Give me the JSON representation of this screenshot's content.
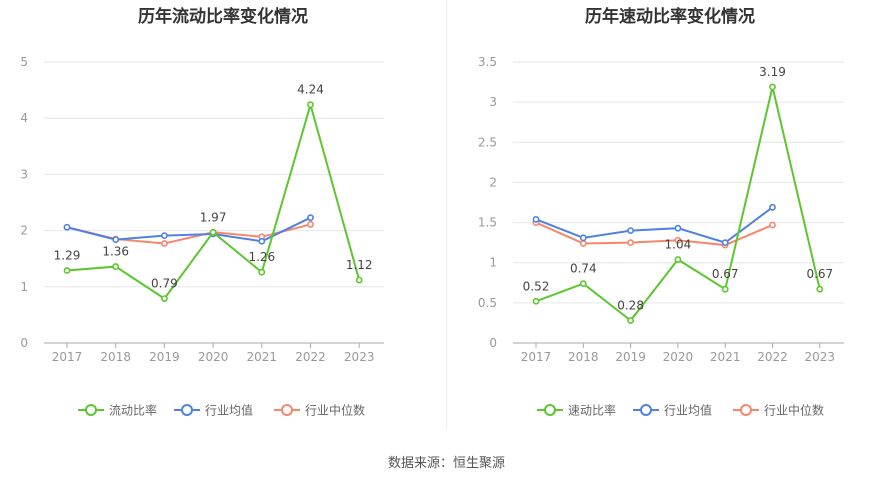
{
  "source": "数据来源：恒生聚源",
  "colors": {
    "company": "#5cc62e",
    "industry_avg": "#4f81e4",
    "industry_median": "#f4876c"
  },
  "chart_data": [
    {
      "type": "line",
      "title": "历年流动比率变化情况",
      "categories": [
        "2017",
        "2018",
        "2019",
        "2020",
        "2021",
        "2022",
        "2023"
      ],
      "ylim": [
        0,
        5
      ],
      "yticks": [
        0,
        1,
        2,
        3,
        4,
        5
      ],
      "ytick_labels": [
        "0",
        "1",
        "2",
        "3",
        "4",
        "5"
      ],
      "grid": true,
      "legend": "bottom",
      "series": [
        {
          "name": "流动比率",
          "values": [
            1.29,
            1.36,
            0.79,
            1.97,
            1.26,
            4.24,
            1.12
          ],
          "labels": [
            "1.29",
            "1.36",
            "0.79",
            "1.97",
            "1.26",
            "4.24",
            "1.12"
          ]
        },
        {
          "name": "行业均值",
          "values": [
            2.06,
            1.84,
            1.91,
            1.94,
            1.81,
            2.23,
            null
          ]
        },
        {
          "name": "行业中位数",
          "values": [
            2.06,
            1.85,
            1.77,
            1.97,
            1.89,
            2.11,
            null
          ]
        }
      ]
    },
    {
      "type": "line",
      "title": "历年速动比率变化情况",
      "categories": [
        "2017",
        "2018",
        "2019",
        "2020",
        "2021",
        "2022",
        "2023"
      ],
      "ylim": [
        0,
        3.5
      ],
      "yticks": [
        0,
        0.5,
        1,
        1.5,
        2,
        2.5,
        3,
        3.5
      ],
      "ytick_labels": [
        "0",
        "0.5",
        "1",
        "1.5",
        "2",
        "2.5",
        "3",
        "3.5"
      ],
      "grid": true,
      "legend": "bottom",
      "series": [
        {
          "name": "速动比率",
          "values": [
            0.52,
            0.74,
            0.28,
            1.04,
            0.67,
            3.19,
            0.67
          ],
          "labels": [
            "0.52",
            "0.74",
            "0.28",
            "1.04",
            "0.67",
            "3.19",
            "0.67"
          ]
        },
        {
          "name": "行业均值",
          "values": [
            1.54,
            1.31,
            1.4,
            1.43,
            1.25,
            1.69,
            null
          ]
        },
        {
          "name": "行业中位数",
          "values": [
            1.5,
            1.24,
            1.25,
            1.28,
            1.22,
            1.47,
            null
          ]
        }
      ]
    }
  ]
}
